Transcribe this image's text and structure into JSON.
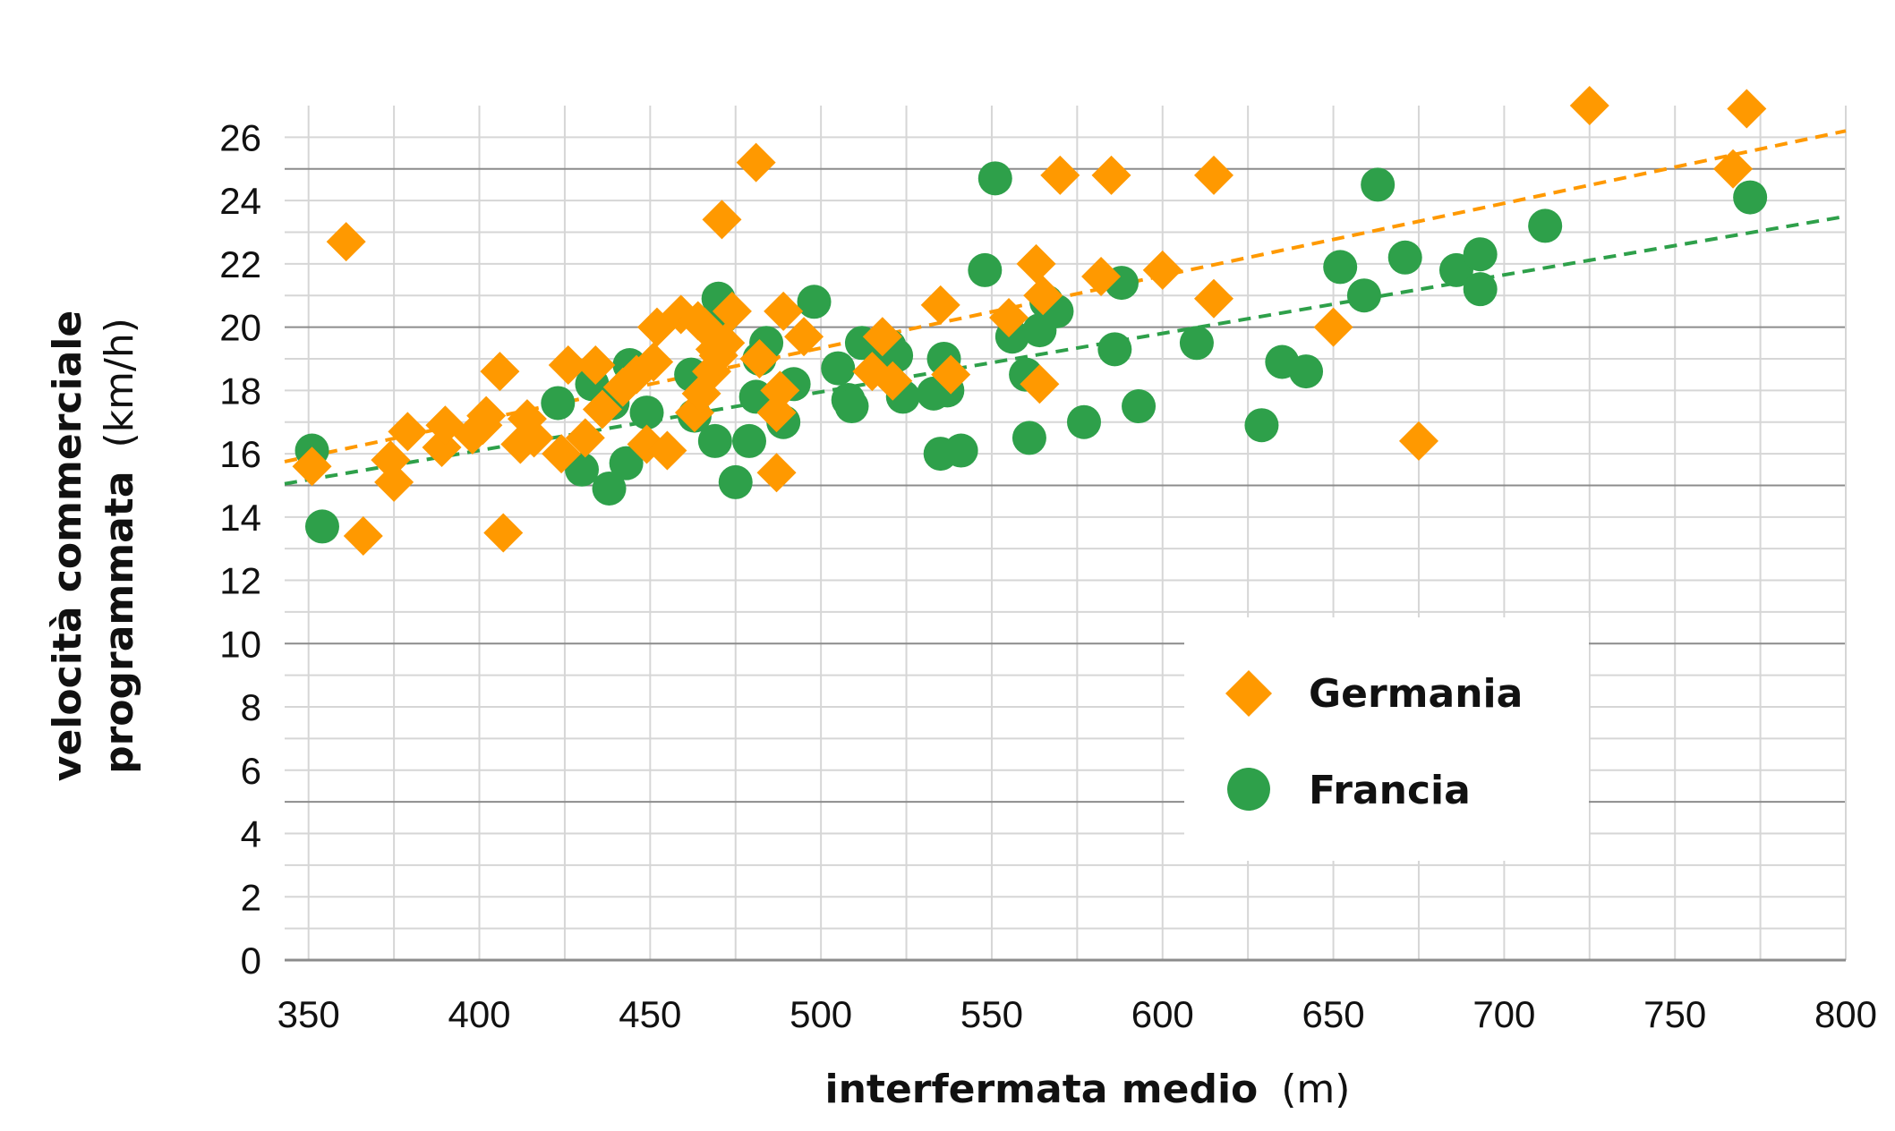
{
  "chart_data": {
    "type": "scatter",
    "xlabel_bold": "interfermata medio",
    "xlabel_unit": "(m)",
    "ylabel_line1": "velocità commerciale",
    "ylabel_line2_bold": "programmata",
    "ylabel_line2_unit": "(km/h)",
    "xlim": [
      343,
      800
    ],
    "ylim": [
      0,
      27
    ],
    "xticks": [
      350,
      400,
      450,
      500,
      550,
      600,
      650,
      700,
      750,
      800
    ],
    "yticks": [
      0,
      2,
      4,
      6,
      8,
      10,
      12,
      14,
      16,
      18,
      20,
      22,
      24,
      26
    ],
    "grid": true,
    "legend_position": "bottom-right",
    "series": [
      {
        "name": "Germania",
        "marker": "diamond",
        "color": "#FF9900",
        "trendline": {
          "x": [
            343,
            800
          ],
          "y": [
            15.75,
            26.2
          ]
        },
        "points": [
          [
            351,
            15.6
          ],
          [
            361,
            22.7
          ],
          [
            366,
            13.4
          ],
          [
            374,
            15.8
          ],
          [
            375,
            15.1
          ],
          [
            379,
            16.7
          ],
          [
            389,
            16.2
          ],
          [
            390,
            16.9
          ],
          [
            398,
            16.6
          ],
          [
            401,
            16.9
          ],
          [
            402,
            17.2
          ],
          [
            406,
            18.6
          ],
          [
            407,
            13.5
          ],
          [
            412,
            16.3
          ],
          [
            414,
            17.1
          ],
          [
            416,
            16.5
          ],
          [
            424,
            16.0
          ],
          [
            426,
            18.8
          ],
          [
            431,
            16.5
          ],
          [
            434,
            18.8
          ],
          [
            436,
            17.4
          ],
          [
            442,
            18.1
          ],
          [
            446,
            18.5
          ],
          [
            449,
            16.3
          ],
          [
            451,
            18.9
          ],
          [
            452,
            20.0
          ],
          [
            455,
            16.1
          ],
          [
            459,
            20.4
          ],
          [
            463,
            17.3
          ],
          [
            464,
            20.2
          ],
          [
            465,
            17.9
          ],
          [
            466,
            20.0
          ],
          [
            468,
            18.6
          ],
          [
            469,
            19.3
          ],
          [
            470,
            19.1
          ],
          [
            471,
            23.4
          ],
          [
            472,
            19.5
          ],
          [
            474,
            20.5
          ],
          [
            481,
            25.2
          ],
          [
            482,
            19.0
          ],
          [
            487,
            15.4
          ],
          [
            487,
            17.3
          ],
          [
            488,
            18.0
          ],
          [
            489,
            20.5
          ],
          [
            495,
            19.7
          ],
          [
            515,
            18.6
          ],
          [
            518,
            19.7
          ],
          [
            521,
            18.3
          ],
          [
            535,
            20.7
          ],
          [
            538,
            18.5
          ],
          [
            555,
            20.3
          ],
          [
            563,
            22.0
          ],
          [
            564,
            18.2
          ],
          [
            565,
            21.0
          ],
          [
            570,
            24.8
          ],
          [
            582,
            21.6
          ],
          [
            585,
            24.8
          ],
          [
            600,
            21.8
          ],
          [
            615,
            24.8
          ],
          [
            615,
            20.9
          ],
          [
            650,
            20.0
          ],
          [
            675,
            16.4
          ],
          [
            725,
            27.0
          ],
          [
            767,
            25.0
          ],
          [
            771,
            26.9
          ]
        ]
      },
      {
        "name": "Francia",
        "marker": "circle",
        "color": "#2EA04A",
        "trendline": {
          "x": [
            343,
            800
          ],
          "y": [
            15.05,
            23.5
          ]
        },
        "points": [
          [
            351,
            16.1
          ],
          [
            354,
            13.7
          ],
          [
            423,
            17.6
          ],
          [
            430,
            15.5
          ],
          [
            433,
            18.2
          ],
          [
            438,
            14.9
          ],
          [
            439,
            17.6
          ],
          [
            443,
            15.7
          ],
          [
            444,
            18.8
          ],
          [
            449,
            17.3
          ],
          [
            462,
            18.5
          ],
          [
            463,
            17.2
          ],
          [
            469,
            16.4
          ],
          [
            470,
            20.9
          ],
          [
            471,
            20.3
          ],
          [
            475,
            15.1
          ],
          [
            479,
            16.4
          ],
          [
            481,
            17.8
          ],
          [
            482,
            19.0
          ],
          [
            484,
            19.5
          ],
          [
            489,
            17.0
          ],
          [
            492,
            18.2
          ],
          [
            498,
            20.8
          ],
          [
            505,
            18.7
          ],
          [
            508,
            17.7
          ],
          [
            509,
            17.5
          ],
          [
            512,
            19.5
          ],
          [
            520,
            19.4
          ],
          [
            522,
            19.1
          ],
          [
            524,
            17.8
          ],
          [
            533,
            17.9
          ],
          [
            535,
            16.0
          ],
          [
            536,
            19.0
          ],
          [
            537,
            18.0
          ],
          [
            541,
            16.1
          ],
          [
            548,
            21.8
          ],
          [
            551,
            24.7
          ],
          [
            556,
            19.7
          ],
          [
            560,
            18.5
          ],
          [
            561,
            16.5
          ],
          [
            564,
            19.9
          ],
          [
            566,
            20.8
          ],
          [
            569,
            20.5
          ],
          [
            577,
            17.0
          ],
          [
            586,
            19.3
          ],
          [
            588,
            21.4
          ],
          [
            593,
            17.5
          ],
          [
            610,
            19.5
          ],
          [
            629,
            16.9
          ],
          [
            635,
            18.9
          ],
          [
            642,
            18.6
          ],
          [
            652,
            21.9
          ],
          [
            659,
            21.0
          ],
          [
            663,
            24.5
          ],
          [
            671,
            22.2
          ],
          [
            686,
            21.8
          ],
          [
            693,
            22.3
          ],
          [
            693,
            21.2
          ],
          [
            712,
            23.2
          ],
          [
            772,
            24.1
          ]
        ]
      }
    ]
  }
}
